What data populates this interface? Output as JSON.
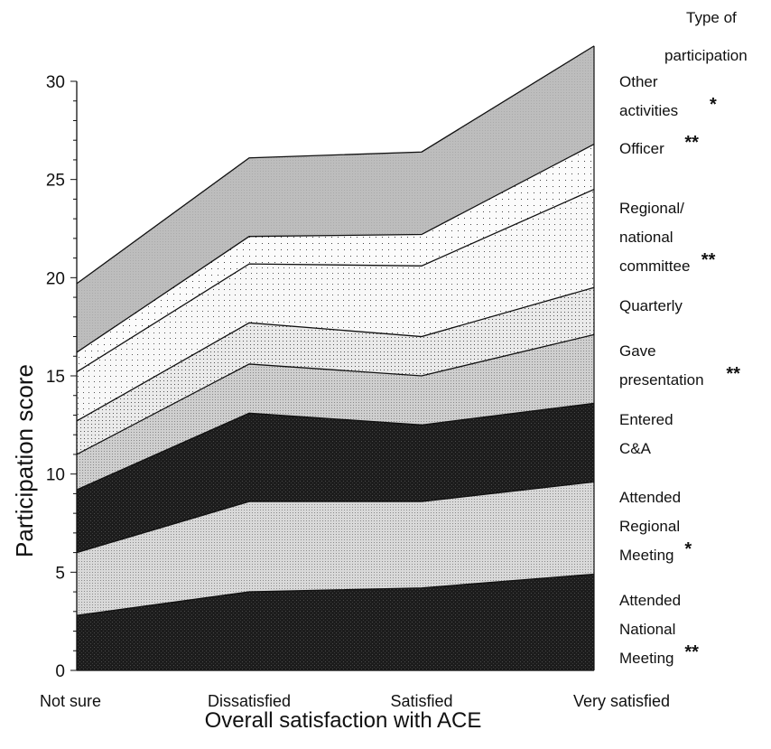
{
  "chart_data": {
    "type": "area",
    "stacked": true,
    "categories": [
      "Not sure",
      "Dissatisfied",
      "Satisfied",
      "Very satisfied"
    ],
    "xlabel": "Overall satisfaction with ACE",
    "ylabel": "Participation score",
    "ylim": [
      0,
      30
    ],
    "yticks": [
      "0",
      "5",
      "10",
      "15",
      "20",
      "25",
      "30"
    ],
    "legend_title": "Type of participation",
    "grid": false,
    "series": [
      {
        "name": "Attended National Meeting",
        "label_lines": [
          "Attended",
          "National",
          "Meeting"
        ],
        "marker": "**",
        "pattern": "dark",
        "values": [
          2.8,
          4.0,
          4.2,
          4.9
        ]
      },
      {
        "name": "Attended Regional Meeting",
        "label_lines": [
          "Attended",
          "Regional",
          "Meeting"
        ],
        "marker": "*",
        "pattern": "light",
        "values": [
          3.2,
          4.6,
          4.4,
          4.7
        ]
      },
      {
        "name": "Entered C&A",
        "label_lines": [
          "Entered",
          "C&A"
        ],
        "marker": "",
        "pattern": "dark",
        "values": [
          3.2,
          4.5,
          3.9,
          4.0
        ]
      },
      {
        "name": "Gave presentation",
        "label_lines": [
          "Gave",
          "presentation"
        ],
        "marker": "**",
        "pattern": "light2",
        "values": [
          1.8,
          2.5,
          2.5,
          3.5
        ]
      },
      {
        "name": "Quarterly",
        "label_lines": [
          "Quarterly"
        ],
        "marker": "",
        "pattern": "dots",
        "values": [
          1.7,
          2.1,
          2.0,
          2.4
        ]
      },
      {
        "name": "Regional/ national committee",
        "label_lines": [
          "Regional/",
          "national",
          "committee"
        ],
        "marker": "**",
        "pattern": "sparse",
        "values": [
          2.5,
          3.0,
          3.6,
          5.0
        ]
      },
      {
        "name": "Officer",
        "label_lines": [
          "Officer"
        ],
        "marker": "**",
        "pattern": "sparse2",
        "values": [
          1.0,
          1.4,
          1.6,
          2.3
        ]
      },
      {
        "name": "Other activities",
        "label_lines": [
          "Other",
          "activities"
        ],
        "marker": "*",
        "pattern": "gray",
        "values": [
          3.5,
          4.0,
          4.2,
          5.0
        ]
      }
    ]
  }
}
